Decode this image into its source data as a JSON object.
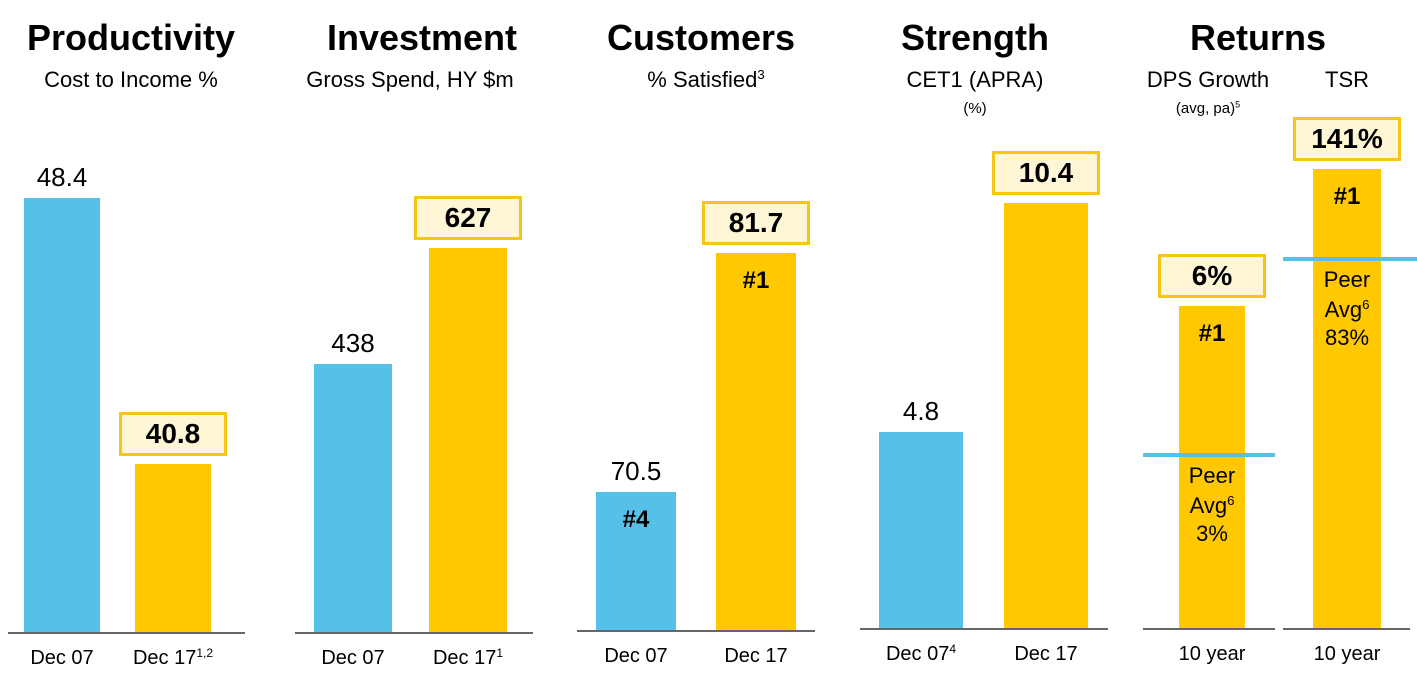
{
  "chart_data": [
    {
      "type": "bar",
      "title": "Productivity",
      "subtitle": "Cost to Income %",
      "categories": [
        "Dec 07",
        "Dec 17"
      ],
      "category_notes": [
        null,
        "1,2"
      ],
      "values": [
        48.4,
        40.8
      ],
      "colors": [
        "#56c1e8",
        "#ffc800"
      ],
      "boxed": [
        false,
        true
      ],
      "ylim": [
        36,
        50
      ]
    },
    {
      "type": "bar",
      "title": "Investment",
      "subtitle": "Gross Spend, HY $m",
      "categories": [
        "Dec 07",
        "Dec 17"
      ],
      "category_notes": [
        null,
        "1"
      ],
      "values": [
        438,
        627
      ],
      "colors": [
        "#56c1e8",
        "#ffc800"
      ],
      "boxed": [
        false,
        true
      ],
      "ylim": [
        0,
        800
      ]
    },
    {
      "type": "bar",
      "title": "Customers",
      "subtitle": "% Satisfied",
      "subtitle_note": "3",
      "categories": [
        "Dec 07",
        "Dec 17"
      ],
      "category_notes": [
        null,
        null
      ],
      "values": [
        70.5,
        81.7
      ],
      "colors": [
        "#56c1e8",
        "#ffc800"
      ],
      "boxed": [
        false,
        true
      ],
      "ranks": [
        "#4",
        "#1"
      ],
      "ylim": [
        64,
        87
      ]
    },
    {
      "type": "bar",
      "title": "Strength",
      "subtitle": "CET1 (APRA)",
      "subtitle2": "(%)",
      "categories": [
        "Dec 07",
        "Dec 17"
      ],
      "category_notes": [
        "4",
        null
      ],
      "values": [
        4.8,
        10.4
      ],
      "colors": [
        "#56c1e8",
        "#ffc800"
      ],
      "boxed": [
        false,
        true
      ],
      "ylim": [
        0,
        12
      ]
    },
    {
      "type": "bar",
      "title": "Returns",
      "subtitle": "DPS Growth",
      "subtitle2": "(avg, pa)",
      "subtitle2_note": "5",
      "categories": [
        "10 year"
      ],
      "category_notes": [
        null
      ],
      "values": [
        6
      ],
      "value_labels": [
        "6%"
      ],
      "colors": [
        "#ffc800"
      ],
      "boxed": [
        true
      ],
      "ranks": [
        "#1"
      ],
      "peer": {
        "label": "Peer Avg",
        "note": "6",
        "value": 3,
        "value_label": "3%"
      },
      "ylim": [
        -0.5,
        9.4
      ]
    },
    {
      "type": "bar",
      "subtitle": "TSR",
      "categories": [
        "10 year"
      ],
      "category_notes": [
        null
      ],
      "values": [
        141
      ],
      "value_labels": [
        "141%"
      ],
      "colors": [
        "#ffc800"
      ],
      "boxed": [
        true
      ],
      "ranks": [
        "#1"
      ],
      "peer": {
        "label": "Peer Avg",
        "note": "6",
        "value": 83,
        "value_label": "83%"
      },
      "ylim": [
        -155,
        161
      ]
    }
  ]
}
